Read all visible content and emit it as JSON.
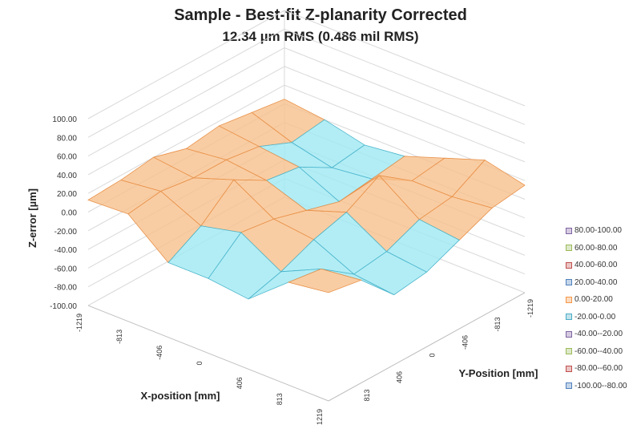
{
  "chart_data": {
    "type": "surface",
    "title": "Sample - Best-fit Z-planarity Corrected",
    "subtitle": "12.34 µm RMS (0.486 mil RMS)",
    "xlabel": "X-position [mm]",
    "ylabel": "Y-Position [mm]",
    "zlabel": "Z-error [µm]",
    "x": [
      -1219,
      -813,
      -406,
      0,
      406,
      813,
      1219
    ],
    "y": [
      -1219,
      -813,
      -406,
      0,
      406,
      813,
      1219
    ],
    "x_tick_labels": [
      "-1219",
      "-813",
      "-406",
      "0",
      "406",
      "813",
      "1219"
    ],
    "y_tick_labels": [
      "-1219",
      "-813",
      "-406",
      "0",
      "406",
      "813"
    ],
    "z_tick_labels": [
      "100.00",
      "80.00",
      "60.00",
      "40.00",
      "20.00",
      "0.00",
      "-20.00",
      "-40.00",
      "-60.00",
      "-80.00",
      "-100.00"
    ],
    "zlim": [
      -100,
      100
    ],
    "z": [
      [
        5,
        10,
        15,
        10,
        20,
        15,
        13
      ],
      [
        0,
        -5,
        10,
        15,
        15,
        20,
        15
      ],
      [
        -10,
        -15,
        5,
        10,
        30,
        0,
        -20
      ],
      [
        -5,
        -10,
        -15,
        -5,
        5,
        10,
        -20
      ],
      [
        10,
        5,
        30,
        10,
        0,
        -15,
        -25
      ],
      [
        25,
        5,
        0,
        -15,
        -20,
        5,
        10
      ],
      [
        15,
        10,
        -5,
        -20,
        -25,
        10,
        16
      ]
    ],
    "legend_position": "right",
    "legend": [
      {
        "label": "80.00-100.00",
        "color": "#8064a2"
      },
      {
        "label": "60.00-80.00",
        "color": "#9bbb59"
      },
      {
        "label": "40.00-60.00",
        "color": "#c0504d"
      },
      {
        "label": "20.00-40.00",
        "color": "#4f81bd"
      },
      {
        "label": "0.00-20.00",
        "color": "#f79646"
      },
      {
        "label": "-20.00-0.00",
        "color": "#4bacc6"
      },
      {
        "label": "-40.00--20.00",
        "color": "#8064a2"
      },
      {
        "label": "-60.00--40.00",
        "color": "#9bbb59"
      },
      {
        "label": "-80.00--60.00",
        "color": "#c0504d"
      },
      {
        "label": "-100.00--80.00",
        "color": "#4f81bd"
      }
    ]
  }
}
